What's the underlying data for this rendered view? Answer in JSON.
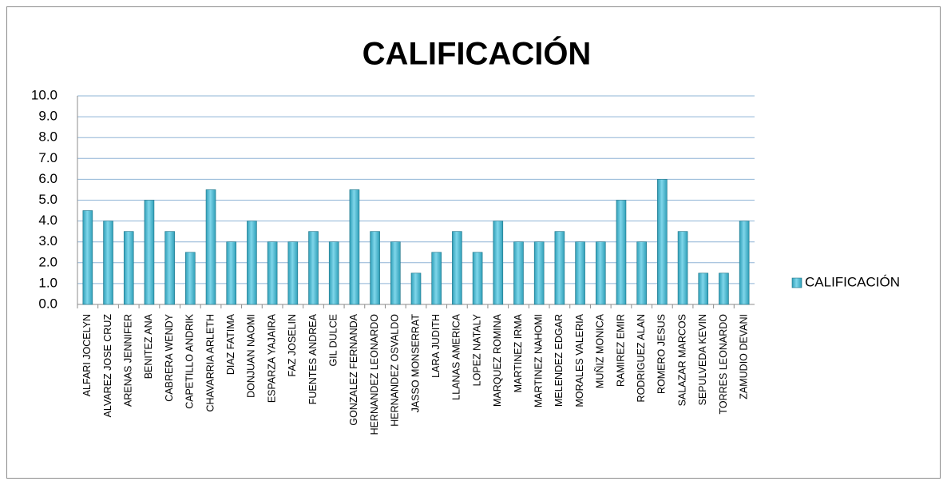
{
  "chart_data": {
    "type": "bar",
    "title": "CALIFICACIÓN",
    "categories": [
      "ALFARI JOCELYN",
      "ALVAREZ JOSE CRUZ",
      "ARENAS JENNIFER",
      "BENITEZ ANA",
      "CABRERA WENDY",
      "CAPETILLO ANDRIK",
      "CHAVARRIA ARLETH",
      "DIAZ FATIMA",
      "DONJUAN NAOMI",
      "ESPARZA YAJAIRA",
      "FAZ JOSELIN",
      "FUENTES ANDREA",
      "GIL DULCE",
      "GONZALEZ FERNANDA",
      "HERNANDEZ LEONARDO",
      "HERNANDEZ OSVALDO",
      "JASSO MONSERRAT",
      "LARA JUDITH",
      "LLANAS AMERICA",
      "LOPEZ NATALY",
      "MARQUEZ ROMINA",
      "MARTINEZ IRMA",
      "MARTINEZ NAHOMI",
      "MELENDEZ EDGAR",
      "MORALES VALERIA",
      "MUÑIZ MONICA",
      "RAMIREZ EMIR",
      "RODRIGUEZ ALAN",
      "ROMERO JESUS",
      "SALAZAR MARCOS",
      "SEPULVEDA KEVIN",
      "TORRES LEONARDO",
      "ZAMUDIO DEVANI"
    ],
    "series": [
      {
        "name": "CALIFICACIÓN",
        "color": "#2f9fb8",
        "values": [
          4.5,
          4.0,
          3.5,
          5.0,
          3.5,
          2.5,
          5.5,
          3.0,
          4.0,
          3.0,
          3.0,
          3.5,
          3.0,
          5.5,
          3.5,
          3.0,
          1.5,
          2.5,
          3.5,
          2.5,
          4.0,
          3.0,
          3.0,
          3.5,
          3.0,
          3.0,
          5.0,
          3.0,
          6.0,
          3.5,
          1.5,
          1.5,
          4.0
        ]
      }
    ],
    "ylim": [
      0,
      10
    ],
    "yticks": [
      {
        "value": 0,
        "label": "0.0"
      },
      {
        "value": 1,
        "label": "1.0"
      },
      {
        "value": 2,
        "label": "2.0"
      },
      {
        "value": 3,
        "label": "3.0"
      },
      {
        "value": 4,
        "label": "4.0"
      },
      {
        "value": 5,
        "label": "5.0"
      },
      {
        "value": 6,
        "label": "6.0"
      },
      {
        "value": 7,
        "label": "7.0"
      },
      {
        "value": 8,
        "label": "8.0"
      },
      {
        "value": 9,
        "label": "9.0"
      },
      {
        "value": 10,
        "label": "10.0"
      }
    ],
    "grid": true,
    "legend": "right"
  }
}
